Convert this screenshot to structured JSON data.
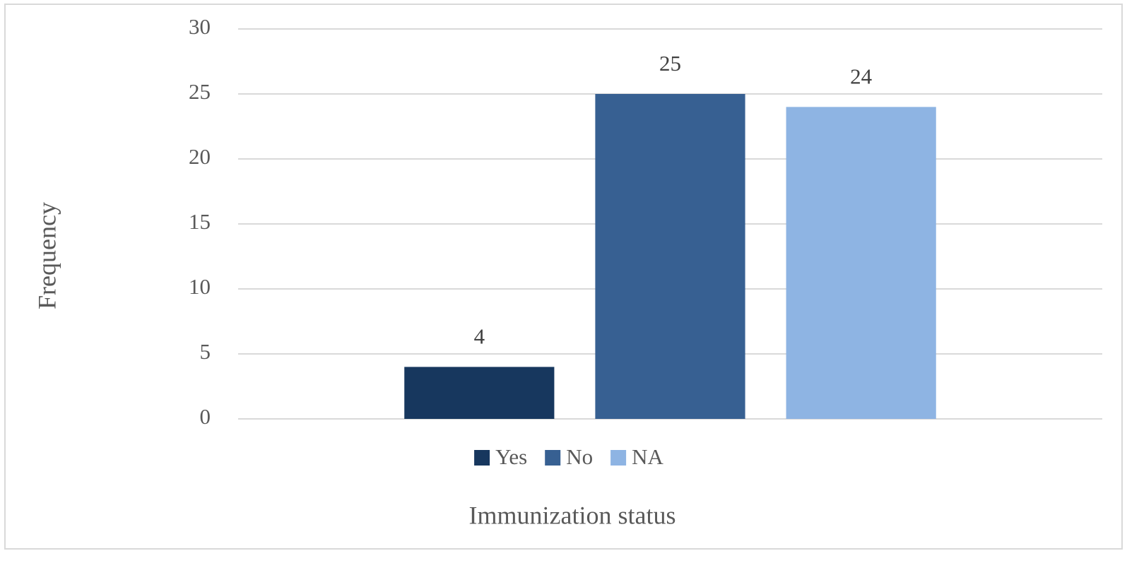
{
  "chart_data": {
    "type": "bar",
    "x_label": "Immunization status",
    "y_label": "Frequency",
    "categories": [
      null
    ],
    "series": [
      {
        "name": "Yes",
        "color": "#17375e",
        "values": [
          4
        ]
      },
      {
        "name": "No",
        "color": "#376092",
        "values": [
          25
        ]
      },
      {
        "name": "NA",
        "color": "#8eb4e3",
        "values": [
          24
        ]
      }
    ],
    "ylim": [
      0,
      30
    ],
    "yticks": [
      0,
      5,
      10,
      15,
      20,
      25,
      30
    ],
    "grid": true,
    "legend": "bottom"
  }
}
